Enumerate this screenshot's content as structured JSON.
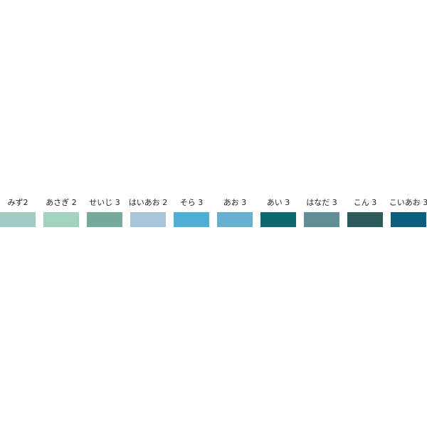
{
  "swatches": [
    {
      "label": "みず2",
      "color": "#a3cbc4"
    },
    {
      "label": "あさぎ 2",
      "color": "#a3d3bf"
    },
    {
      "label": "せいじ 3",
      "color": "#76aa9d"
    },
    {
      "label": "はいあお 2",
      "color": "#a8c5d9"
    },
    {
      "label": "そら 3",
      "color": "#4eaed3"
    },
    {
      "label": "あお 3",
      "color": "#68b0cf"
    },
    {
      "label": "あい 3",
      "color": "#0a6a6e"
    },
    {
      "label": "はなだ 3",
      "color": "#5f8e97"
    },
    {
      "label": "こん 3",
      "color": "#2d5a5a"
    },
    {
      "label": "こいあお 3",
      "color": "#0b5f7d"
    }
  ]
}
